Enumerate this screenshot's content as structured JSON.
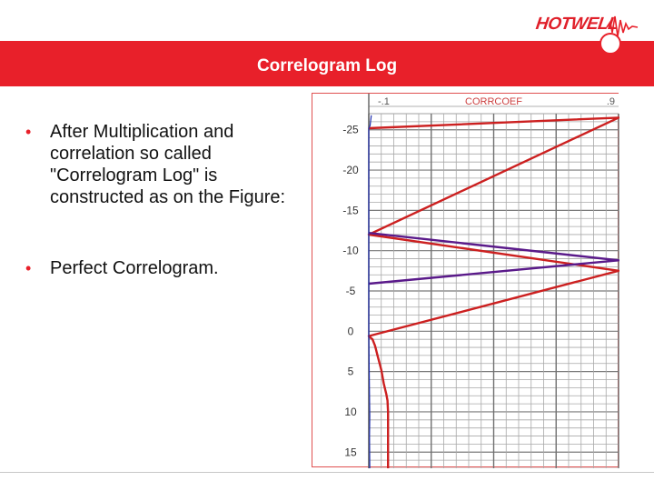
{
  "brand": {
    "name": "HOTWELL",
    "color": "#e8202a"
  },
  "title": "Correlogram Log",
  "bullets": [
    "After Multiplication and correlation so called \"Correlogram Log\" is constructed as on the Figure:",
    "Perfect Correlogram."
  ],
  "chart_data": {
    "type": "line",
    "track_label": "CORRCOEF",
    "x_left_label": "-.1",
    "x_right_label": ".9",
    "xlim": [
      -0.1,
      0.9
    ],
    "ylim": [
      -27,
      17
    ],
    "y_ticks": [
      -25,
      -20,
      -15,
      -10,
      -5,
      0,
      5,
      10,
      15
    ],
    "series": [
      {
        "name": "correlogram-red",
        "color": "#cc2020",
        "points": [
          [
            -0.1,
            -25.2
          ],
          [
            0.9,
            -26.5
          ],
          [
            -0.1,
            -12
          ],
          [
            0.9,
            -7.5
          ],
          [
            -0.1,
            0.6
          ],
          [
            -0.085,
            1.0
          ],
          [
            -0.075,
            1.8
          ],
          [
            -0.065,
            3.0
          ],
          [
            -0.05,
            4.8
          ],
          [
            -0.04,
            6.5
          ],
          [
            -0.03,
            7.8
          ],
          [
            -0.025,
            8.6
          ],
          [
            -0.023,
            10
          ],
          [
            -0.023,
            17
          ]
        ]
      },
      {
        "name": "correlogram-purple",
        "color": "#5a1a8a",
        "points": [
          [
            -0.1,
            -12.2
          ],
          [
            0.9,
            -8.8
          ],
          [
            -0.1,
            -5.9
          ]
        ]
      },
      {
        "name": "correlogram-blue",
        "color": "#2030b0",
        "points": [
          [
            -0.09,
            -26.8
          ],
          [
            -0.095,
            -25.5
          ],
          [
            -0.1,
            -25.2
          ],
          [
            -0.1,
            0.5
          ],
          [
            -0.098,
            5
          ],
          [
            -0.097,
            8
          ],
          [
            -0.096,
            10.5
          ],
          [
            -0.097,
            13
          ],
          [
            -0.096,
            17
          ]
        ]
      }
    ],
    "grid": true
  }
}
